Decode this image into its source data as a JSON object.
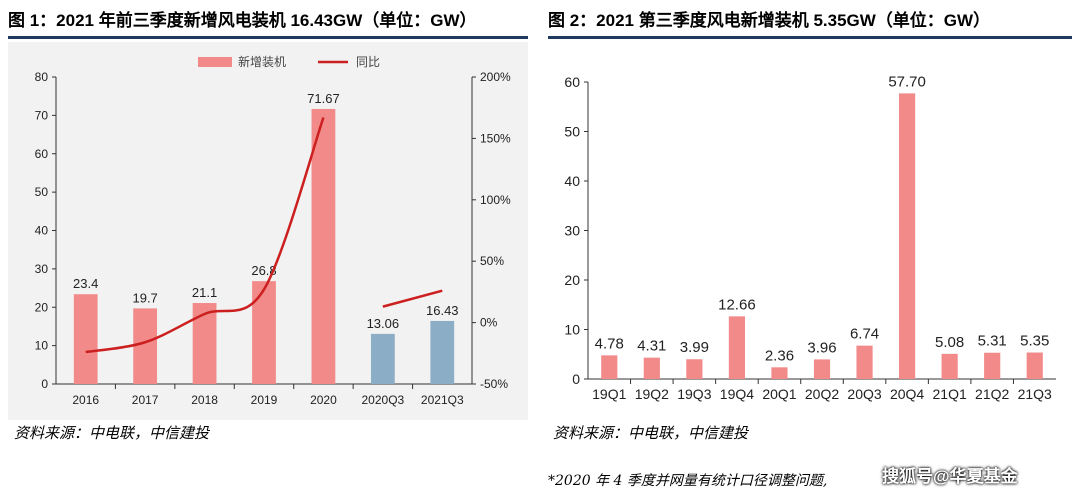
{
  "fig1": {
    "title": "图 1：2021 年前三季度新增风电装机 16.43GW（单位：GW）",
    "source": "资料来源：中电联，中信建投"
  },
  "fig2": {
    "title": "图 2：2021 第三季度风电新增装机 5.35GW（单位：GW）",
    "source": "资料来源：中电联，中信建投"
  },
  "footnote": "*2020 年 4 季度并网量有统计口径调整问题,",
  "watermark": "搜狐号@华夏基金",
  "chart_data": [
    {
      "type": "bar",
      "categories": [
        "2016",
        "2017",
        "2018",
        "2019",
        "2020",
        "2020Q3",
        "2021Q3"
      ],
      "series": [
        {
          "name": "新增装机",
          "values": [
            23.4,
            19.7,
            21.1,
            26.8,
            71.67,
            13.06,
            16.43
          ],
          "labels": [
            "23.4",
            "19.7",
            "21.1",
            "26.8",
            "71.67",
            "13.06",
            "16.43"
          ],
          "colors": [
            "#f28a8a",
            "#f28a8a",
            "#f28a8a",
            "#f28a8a",
            "#f28a8a",
            "#8badc6",
            "#8badc6"
          ]
        },
        {
          "name": "同比",
          "type": "line",
          "axis": "right",
          "color": "#cc1f1f",
          "values": [
            -24,
            -16,
            7,
            27,
            167,
            null,
            null
          ],
          "extra_segment": {
            "from": 13,
            "to": 26
          }
        }
      ],
      "yticks_left": [
        "0",
        "10",
        "20",
        "30",
        "40",
        "50",
        "60",
        "70",
        "80"
      ],
      "yticks_right": [
        "-50%",
        "0%",
        "50%",
        "100%",
        "150%",
        "200%"
      ],
      "ylim": [
        0,
        80
      ],
      "ylim_right": [
        -50,
        200
      ],
      "legend": "top-center",
      "grid": false
    },
    {
      "type": "bar",
      "categories": [
        "19Q1",
        "19Q2",
        "19Q3",
        "19Q4",
        "20Q1",
        "20Q2",
        "20Q3",
        "20Q4",
        "21Q1",
        "21Q2",
        "21Q3"
      ],
      "values": [
        4.78,
        4.31,
        3.99,
        12.66,
        2.36,
        3.96,
        6.74,
        57.7,
        5.08,
        5.31,
        5.35
      ],
      "labels": [
        "4.78",
        "4.31",
        "3.99",
        "12.66",
        "2.36",
        "3.96",
        "6.74",
        "57.70",
        "5.08",
        "5.31",
        "5.35"
      ],
      "color": "#f28a8a",
      "yticks": [
        "0",
        "10",
        "20",
        "30",
        "40",
        "50",
        "60"
      ],
      "ylim": [
        0,
        60
      ],
      "grid": false
    }
  ]
}
